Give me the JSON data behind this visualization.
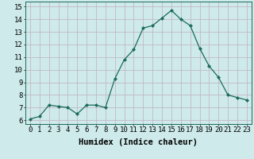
{
  "x": [
    0,
    1,
    2,
    3,
    4,
    5,
    6,
    7,
    8,
    9,
    10,
    11,
    12,
    13,
    14,
    15,
    16,
    17,
    18,
    19,
    20,
    21,
    22,
    23
  ],
  "y": [
    6.1,
    6.3,
    7.2,
    7.1,
    7.0,
    6.5,
    7.2,
    7.2,
    7.0,
    9.3,
    10.8,
    11.6,
    13.3,
    13.5,
    14.1,
    14.7,
    14.0,
    13.5,
    11.7,
    10.3,
    9.4,
    8.0,
    7.8,
    7.6
  ],
  "line_color": "#1a6b5a",
  "marker": "D",
  "marker_size": 2.0,
  "bg_color": "#ceeaea",
  "grid_color": "#c0afc0",
  "xlabel": "Humidex (Indice chaleur)",
  "xlabel_fontsize": 7.5,
  "ylabel_ticks": [
    6,
    7,
    8,
    9,
    10,
    11,
    12,
    13,
    14,
    15
  ],
  "ylim": [
    5.7,
    15.4
  ],
  "xlim": [
    -0.5,
    23.5
  ],
  "tick_fontsize": 6.5,
  "linewidth": 0.9
}
